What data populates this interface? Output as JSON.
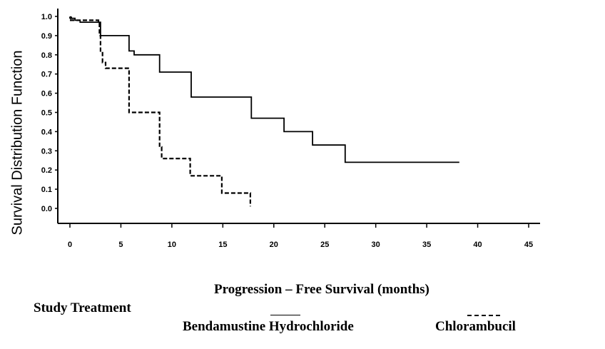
{
  "chart_data": {
    "type": "line",
    "xlabel": "Progression – Free Survival (months)",
    "ylabel": "Survival Distribution Function",
    "xlim": [
      0,
      45
    ],
    "ylim": [
      0,
      1.0
    ],
    "xticks": [
      0,
      5,
      10,
      15,
      20,
      25,
      30,
      35,
      40,
      45
    ],
    "yticks": [
      0.0,
      0.1,
      0.2,
      0.3,
      0.4,
      0.5,
      0.6,
      0.7,
      0.8,
      0.9,
      1.0
    ],
    "grid": false,
    "legend": {
      "title": "Study Treatment",
      "placement": "bottom"
    },
    "series": [
      {
        "name": "Bendamustine Hydrochloride",
        "style": "solid",
        "color": "#000000",
        "x": [
          0,
          0.5,
          1,
          2.9,
          3,
          5.5,
          5.8,
          6.3,
          8.5,
          8.8,
          11.7,
          11.9,
          17.6,
          17.8,
          20.8,
          21,
          23.6,
          23.8,
          26.8,
          27,
          38.2
        ],
        "y": [
          0.99,
          0.98,
          0.97,
          0.97,
          0.9,
          0.9,
          0.82,
          0.8,
          0.8,
          0.71,
          0.71,
          0.58,
          0.58,
          0.47,
          0.47,
          0.4,
          0.4,
          0.33,
          0.33,
          0.24,
          0.24
        ]
      },
      {
        "name": "Chlorambucil",
        "style": "dashed",
        "color": "#000000",
        "x": [
          0,
          2.8,
          2.9,
          3.0,
          3.2,
          3.5,
          5.6,
          5.8,
          8.7,
          8.8,
          9.0,
          11.7,
          11.8,
          14.8,
          14.9,
          17.7,
          17.7
        ],
        "y": [
          0.98,
          0.97,
          0.9,
          0.82,
          0.76,
          0.73,
          0.73,
          0.5,
          0.5,
          0.32,
          0.26,
          0.26,
          0.17,
          0.17,
          0.08,
          0.08,
          0.01
        ]
      }
    ]
  }
}
